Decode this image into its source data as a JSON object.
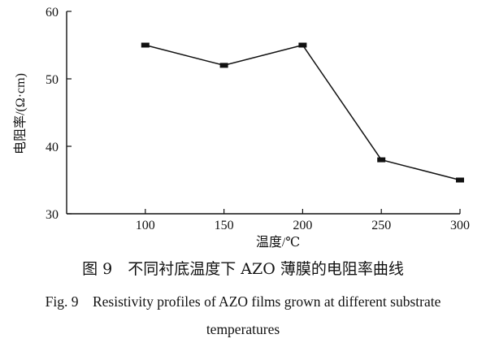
{
  "chart_data": {
    "type": "line",
    "title": "",
    "xlabel": "温度/℃",
    "ylabel": "电阻率/(Ω·cm)",
    "x": [
      100,
      150,
      200,
      250,
      300
    ],
    "series": [
      {
        "values": [
          55,
          52,
          55,
          38,
          35
        ]
      }
    ],
    "x_ticks": [
      100,
      150,
      200,
      250,
      300
    ],
    "y_ticks": [
      30,
      40,
      50,
      60
    ],
    "xlim": [
      50,
      300
    ],
    "ylim": [
      30,
      60
    ],
    "grid": false,
    "marker": "square",
    "colors": {
      "line": "#111111"
    }
  },
  "caption": {
    "chinese": "图 9　不同衬底温度下 AZO 薄膜的电阻率曲线",
    "english_line1": "Fig. 9　Resistivity profiles of AZO films grown at different substrate",
    "english_line2": "temperatures"
  }
}
